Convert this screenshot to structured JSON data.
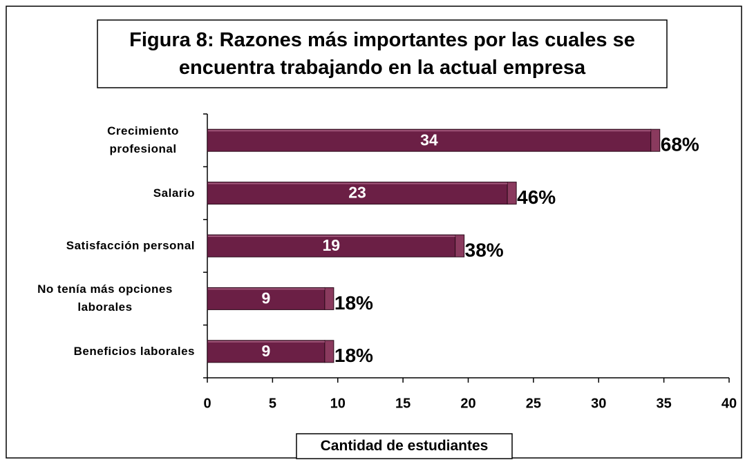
{
  "chart_data": {
    "type": "bar",
    "orientation": "horizontal",
    "title": "Figura 8: Razones más importantes por las cuales se encuentra trabajando en la actual empresa",
    "xlabel": "Cantidad de estudiantes",
    "categories": [
      "Crecimiento profesional",
      "Salario",
      "Satisfacción personal",
      "No tenía más opciones laborales",
      "Beneficios laborales"
    ],
    "values": [
      34,
      23,
      19,
      9,
      9
    ],
    "percents": [
      68,
      46,
      38,
      18,
      18
    ],
    "percent_labels": [
      "68%",
      "46%",
      "38%",
      "18%",
      "18%"
    ],
    "color": "#6b1f45",
    "xlim": [
      0,
      40
    ],
    "xticks": [
      0,
      5,
      10,
      15,
      20,
      25,
      30,
      35,
      40
    ],
    "grid": false
  }
}
